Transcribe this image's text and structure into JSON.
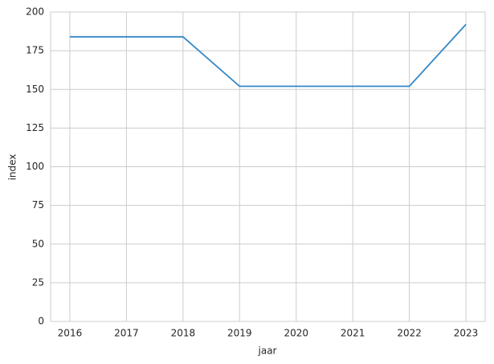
{
  "chart_data": {
    "type": "line",
    "x": [
      2016,
      2017,
      2018,
      2019,
      2020,
      2021,
      2022,
      2023
    ],
    "values": [
      184,
      184,
      184,
      152,
      152,
      152,
      152,
      192
    ],
    "color": "#3388c8",
    "x_label": "jaar",
    "y_label": "index",
    "xlim": [
      2015.66,
      2023.34
    ],
    "ylim": [
      0,
      200
    ],
    "xticks": [
      2016,
      2017,
      2018,
      2019,
      2020,
      2021,
      2022,
      2023
    ],
    "yticks": [
      0,
      25,
      50,
      75,
      100,
      125,
      150,
      175,
      200
    ],
    "grid": true
  }
}
